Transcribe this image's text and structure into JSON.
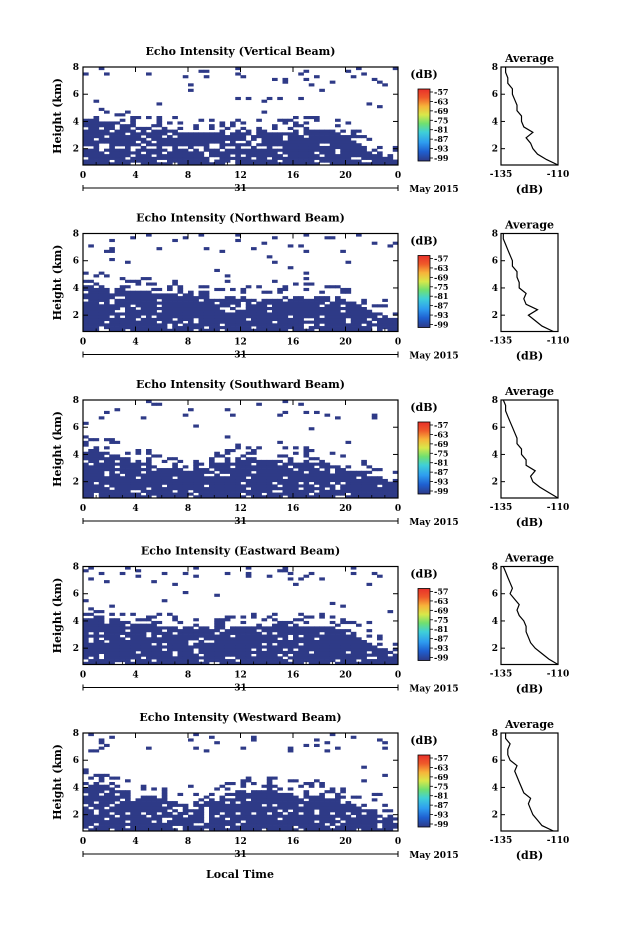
{
  "figure": {
    "xlabel": "Local Time",
    "month_label": "May 2015",
    "day_label": "31",
    "colorbar_unit": "(dB)",
    "colorbar_ticks": [
      "-57",
      "-63",
      "-69",
      "-75",
      "-81",
      "-87",
      "-93",
      "-99"
    ],
    "palette": [
      "#2e3a87",
      "#1f5fd0",
      "#2e9df0",
      "#3fd0d8",
      "#70e070",
      "#d8e84a",
      "#f7b43a",
      "#ef5a2a",
      "#e8302a"
    ],
    "background_color": "#ffffff"
  },
  "chart_data": [
    {
      "type": "heatmap",
      "title": "Echo Intensity (Vertical Beam)",
      "ylabel": "Height (km)",
      "xlabel": "",
      "x_ticks": [
        "0",
        "4",
        "8",
        "12",
        "16",
        "20",
        "0"
      ],
      "y_ticks": [
        "2",
        "4",
        "6",
        "8"
      ],
      "xlim": [
        0,
        24
      ],
      "ylim": [
        0.8,
        8
      ],
      "dominant_value_db": -99,
      "layer_top_km": [
        4.2,
        4.0,
        3.6,
        3.4,
        3.2,
        3.2,
        3.2,
        3.2,
        3.3,
        3.4,
        3.2,
        1.8,
        1.2
      ],
      "profile": {
        "title": "Average",
        "xlabel": "(dB)",
        "x_ticks": [
          "-135",
          "-110"
        ],
        "y_ticks": [
          "2",
          "4",
          "6",
          "8"
        ],
        "xlim": [
          -135,
          -110
        ],
        "ylim": [
          0.8,
          8
        ],
        "heights_km": [
          0.8,
          1.2,
          1.6,
          2.0,
          2.4,
          2.8,
          3.2,
          3.6,
          4.0,
          4.4,
          4.8,
          5.2,
          5.6,
          6.0,
          6.4,
          6.8,
          7.2,
          7.6,
          8.0
        ],
        "values_db": [
          -110,
          -115,
          -119,
          -121,
          -122,
          -124,
          -121,
          -125,
          -126,
          -126,
          -128,
          -128,
          -129,
          -130,
          -130,
          -132,
          -132,
          -133,
          -133
        ]
      }
    },
    {
      "type": "heatmap",
      "title": "Echo Intensity (Northward Beam)",
      "ylabel": "Height (km)",
      "xlabel": "",
      "x_ticks": [
        "0",
        "4",
        "8",
        "12",
        "16",
        "20",
        "0"
      ],
      "y_ticks": [
        "2",
        "4",
        "6",
        "8"
      ],
      "xlim": [
        0,
        24
      ],
      "ylim": [
        0.8,
        8
      ],
      "dominant_value_db": -99,
      "layer_top_km": [
        4.3,
        4.0,
        3.8,
        3.6,
        3.4,
        3.3,
        3.3,
        3.3,
        3.3,
        3.4,
        3.2,
        2.4,
        1.8
      ],
      "profile": {
        "title": "Average",
        "xlabel": "(dB)",
        "x_ticks": [
          "-135",
          "-110"
        ],
        "y_ticks": [
          "2",
          "4",
          "6",
          "8"
        ],
        "xlim": [
          -135,
          -110
        ],
        "ylim": [
          0.8,
          8
        ],
        "heights_km": [
          0.8,
          1.2,
          1.6,
          2.0,
          2.4,
          2.8,
          3.2,
          3.6,
          4.0,
          4.4,
          4.8,
          5.2,
          5.6,
          6.0,
          6.4,
          6.8,
          7.2,
          7.6,
          8.0
        ],
        "values_db": [
          -112,
          -117,
          -120,
          -123,
          -119,
          -124,
          -125,
          -124,
          -127,
          -127,
          -128,
          -128,
          -130,
          -130,
          -131,
          -132,
          -133,
          -134,
          -134
        ]
      }
    },
    {
      "type": "heatmap",
      "title": "Echo Intensity (Southward Beam)",
      "ylabel": "Height (km)",
      "xlabel": "",
      "x_ticks": [
        "0",
        "4",
        "8",
        "12",
        "16",
        "20",
        "0"
      ],
      "y_ticks": [
        "2",
        "4",
        "6",
        "8"
      ],
      "xlim": [
        0,
        24
      ],
      "ylim": [
        0.8,
        8
      ],
      "dominant_value_db": -99,
      "layer_top_km": [
        4.5,
        4.1,
        3.6,
        3.0,
        2.8,
        3.2,
        3.6,
        3.6,
        3.5,
        3.6,
        3.0,
        2.4,
        2.0
      ],
      "profile": {
        "title": "Average",
        "xlabel": "(dB)",
        "x_ticks": [
          "-135",
          "-110"
        ],
        "y_ticks": [
          "2",
          "4",
          "6",
          "8"
        ],
        "xlim": [
          -135,
          -110
        ],
        "ylim": [
          0.8,
          8
        ],
        "heights_km": [
          0.8,
          1.2,
          1.6,
          2.0,
          2.4,
          2.8,
          3.2,
          3.6,
          4.0,
          4.4,
          4.8,
          5.2,
          5.6,
          6.0,
          6.4,
          6.8,
          7.2,
          7.6,
          8.0
        ],
        "values_db": [
          -110,
          -114,
          -118,
          -121,
          -122,
          -120,
          -124,
          -124,
          -126,
          -126,
          -128,
          -128,
          -129,
          -130,
          -131,
          -132,
          -133,
          -133,
          -134
        ]
      }
    },
    {
      "type": "heatmap",
      "title": "Echo Intensity (Eastward Beam)",
      "ylabel": "Height (km)",
      "xlabel": "",
      "x_ticks": [
        "0",
        "4",
        "8",
        "12",
        "16",
        "20",
        "0"
      ],
      "y_ticks": [
        "2",
        "4",
        "6",
        "8"
      ],
      "xlim": [
        0,
        24
      ],
      "ylim": [
        0.8,
        8
      ],
      "dominant_value_db": -99,
      "layer_top_km": [
        4.6,
        4.2,
        3.8,
        3.6,
        3.4,
        3.4,
        3.6,
        3.6,
        3.6,
        3.7,
        3.4,
        2.4,
        1.6
      ],
      "profile": {
        "title": "Average",
        "xlabel": "(dB)",
        "x_ticks": [
          "-135",
          "-110"
        ],
        "y_ticks": [
          "2",
          "4",
          "6",
          "8"
        ],
        "xlim": [
          -135,
          -110
        ],
        "ylim": [
          0.8,
          8
        ],
        "heights_km": [
          0.8,
          1.2,
          1.6,
          2.0,
          2.4,
          2.8,
          3.2,
          3.6,
          4.0,
          4.4,
          4.8,
          5.2,
          5.6,
          6.0,
          6.4,
          6.8,
          7.2,
          7.6,
          8.0
        ],
        "values_db": [
          -110,
          -114,
          -117,
          -120,
          -122,
          -123,
          -124,
          -124,
          -125,
          -127,
          -128,
          -127,
          -129,
          -131,
          -130,
          -131,
          -132,
          -133,
          -134
        ]
      }
    },
    {
      "type": "heatmap",
      "title": "Echo Intensity (Westward Beam)",
      "ylabel": "Height (km)",
      "xlabel": "Local Time",
      "x_ticks": [
        "0",
        "4",
        "8",
        "12",
        "16",
        "20",
        "0"
      ],
      "y_ticks": [
        "2",
        "4",
        "6",
        "8"
      ],
      "xlim": [
        0,
        24
      ],
      "ylim": [
        0.8,
        8
      ],
      "dominant_value_db": -99,
      "layer_top_km": [
        4.5,
        4.0,
        3.5,
        3.0,
        2.6,
        3.0,
        3.8,
        3.8,
        3.6,
        3.6,
        3.0,
        2.2,
        1.8
      ],
      "profile": {
        "title": "Average",
        "xlabel": "(dB)",
        "x_ticks": [
          "-135",
          "-110"
        ],
        "y_ticks": [
          "2",
          "4",
          "6",
          "8"
        ],
        "xlim": [
          -135,
          -110
        ],
        "ylim": [
          0.8,
          8
        ],
        "heights_km": [
          0.8,
          1.2,
          1.6,
          2.0,
          2.4,
          2.8,
          3.2,
          3.6,
          4.0,
          4.4,
          4.8,
          5.2,
          5.6,
          6.0,
          6.4,
          6.8,
          7.2,
          7.6,
          8.0
        ],
        "values_db": [
          -112,
          -117,
          -119,
          -121,
          -122,
          -123,
          -122,
          -125,
          -126,
          -127,
          -128,
          -129,
          -128,
          -131,
          -132,
          -132,
          -131,
          -133,
          -133
        ]
      }
    }
  ]
}
